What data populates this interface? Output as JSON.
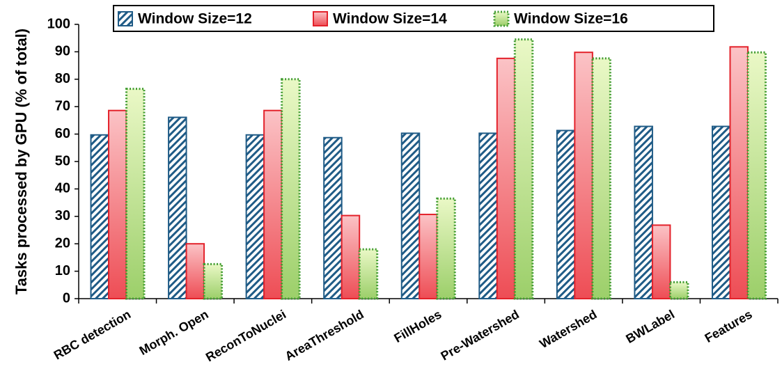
{
  "chart_data": {
    "type": "bar",
    "y_label": "Tasks processed by GPU (% of total)",
    "categories": [
      "RBC detection",
      "Morph. Open",
      "ReconToNuclei",
      "AreaThreshold",
      "FillHoles",
      "Pre-Watershed",
      "Watershed",
      "BWLabel",
      "Features"
    ],
    "series": [
      {
        "name": "Window Size=12",
        "color": "#1f5b86",
        "values": [
          59.7,
          66.1,
          59.7,
          58.7,
          60.3,
          60.3,
          61.3,
          62.8,
          62.8
        ]
      },
      {
        "name": "Window Size=14",
        "color": "#e3222b",
        "values": [
          68.6,
          20,
          68.6,
          30.3,
          30.7,
          87.6,
          89.8,
          26.8,
          91.8
        ]
      },
      {
        "name": "Window Size=16",
        "color": "#3f9b2f",
        "values": [
          76.5,
          12.6,
          80,
          18,
          36.5,
          94.5,
          87.6,
          6,
          89.8
        ]
      }
    ],
    "ylim": [
      0,
      100
    ],
    "yticks": [
      0,
      10,
      20,
      30,
      40,
      50,
      60,
      70,
      80,
      90,
      100
    ],
    "grid": false,
    "legend": "top"
  }
}
